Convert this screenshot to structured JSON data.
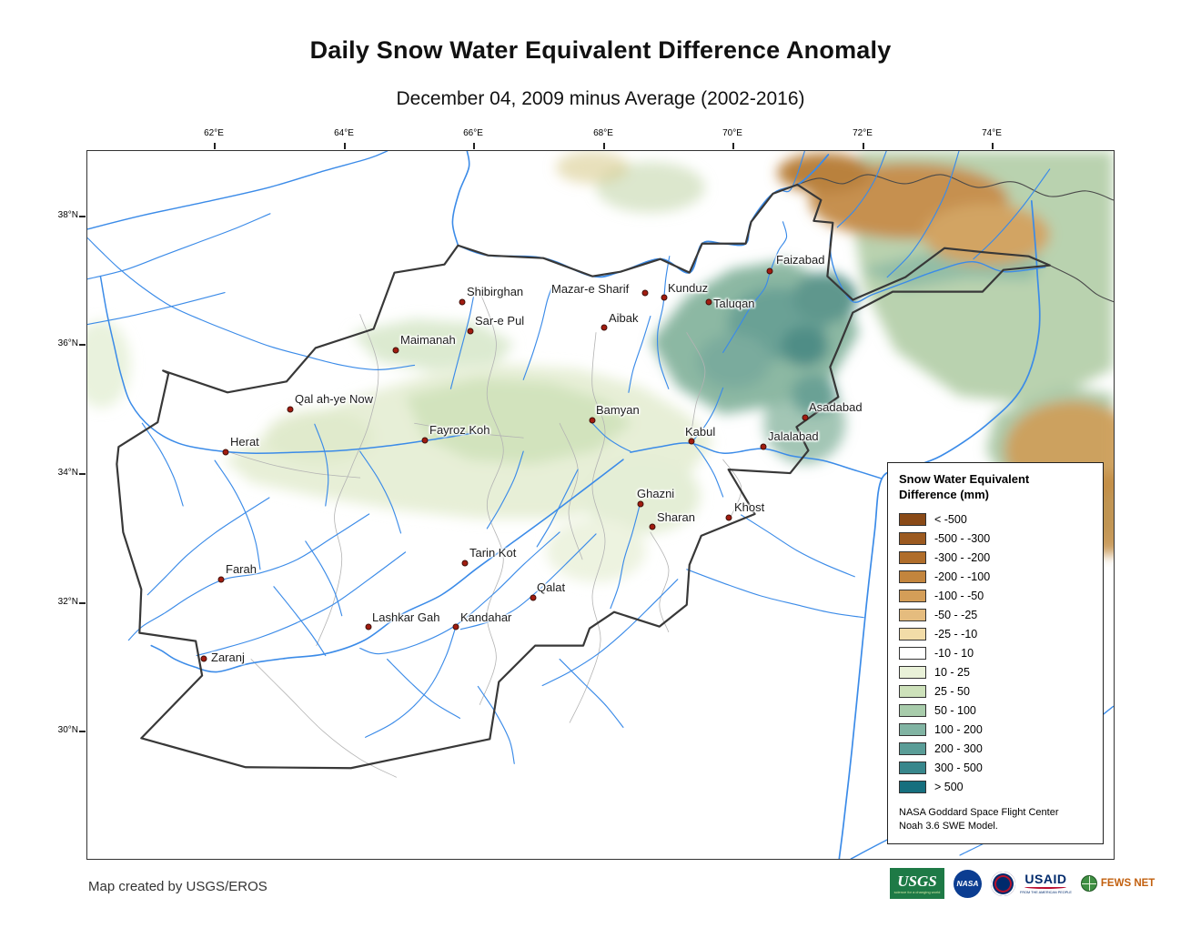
{
  "title": "Daily Snow Water Equivalent Difference Anomaly",
  "subtitle": "December 04, 2009 minus Average (2002-2016)",
  "axes": {
    "lon_labels": [
      "62°E",
      "64°E",
      "66°E",
      "68°E",
      "70°E",
      "72°E",
      "74°E"
    ],
    "lat_labels": [
      "38°N",
      "36°N",
      "34°N",
      "32°N",
      "30°N"
    ]
  },
  "map": {
    "cities": [
      {
        "name": "Faizabad",
        "dot": [
          750,
          132
        ],
        "label": [
          757,
          112
        ]
      },
      {
        "name": "Shibirghan",
        "dot": [
          412,
          166
        ],
        "label": [
          417,
          147
        ]
      },
      {
        "name": "Mazar-e Sharif",
        "dot": [
          613,
          156
        ],
        "label": [
          510,
          144
        ]
      },
      {
        "name": "Kunduz",
        "dot": [
          634,
          161
        ],
        "label": [
          638,
          143
        ]
      },
      {
        "name": "Taluqan",
        "dot": [
          683,
          166
        ],
        "label": [
          688,
          160
        ]
      },
      {
        "name": "Aibak",
        "dot": [
          568,
          194
        ],
        "label": [
          573,
          176
        ]
      },
      {
        "name": "Sar-e Pul",
        "dot": [
          421,
          198
        ],
        "label": [
          426,
          179
        ]
      },
      {
        "name": "Maimanah",
        "dot": [
          339,
          219
        ],
        "label": [
          344,
          200
        ]
      },
      {
        "name": "Qal ah-ye Now",
        "dot": [
          223,
          284
        ],
        "label": [
          228,
          265
        ]
      },
      {
        "name": "Herat",
        "dot": [
          152,
          331
        ],
        "label": [
          157,
          312
        ]
      },
      {
        "name": "Fayroz Koh",
        "dot": [
          371,
          318
        ],
        "label": [
          376,
          299
        ]
      },
      {
        "name": "Bamyan",
        "dot": [
          555,
          296
        ],
        "label": [
          559,
          277
        ]
      },
      {
        "name": "Kabul",
        "dot": [
          664,
          319
        ],
        "label": [
          657,
          301
        ]
      },
      {
        "name": "Asadabad",
        "dot": [
          789,
          293
        ],
        "label": [
          793,
          274
        ]
      },
      {
        "name": "Jalalabad",
        "dot": [
          743,
          325
        ],
        "label": [
          748,
          306
        ]
      },
      {
        "name": "Ghazni",
        "dot": [
          608,
          388
        ],
        "label": [
          604,
          369
        ]
      },
      {
        "name": "Khost",
        "dot": [
          705,
          403
        ],
        "label": [
          711,
          384
        ]
      },
      {
        "name": "Sharan",
        "dot": [
          621,
          413
        ],
        "label": [
          626,
          395
        ]
      },
      {
        "name": "Farah",
        "dot": [
          147,
          471
        ],
        "label": [
          152,
          452
        ]
      },
      {
        "name": "Tarin Kot",
        "dot": [
          415,
          453
        ],
        "label": [
          420,
          434
        ]
      },
      {
        "name": "Qalat",
        "dot": [
          490,
          491
        ],
        "label": [
          494,
          472
        ]
      },
      {
        "name": "Lashkar Gah",
        "dot": [
          309,
          523
        ],
        "label": [
          313,
          505
        ]
      },
      {
        "name": "Kandahar",
        "dot": [
          405,
          523
        ],
        "label": [
          410,
          505
        ]
      },
      {
        "name": "Zaranj",
        "dot": [
          128,
          558
        ],
        "label": [
          136,
          549
        ]
      }
    ]
  },
  "legend": {
    "title_line1": "Snow Water Equivalent",
    "title_line2": "Difference (mm)",
    "entries": [
      {
        "label": "< -500",
        "color": "#8a4a17"
      },
      {
        "label": "-500 - -300",
        "color": "#9c5a20"
      },
      {
        "label": "-300 - -200",
        "color": "#b06d2a"
      },
      {
        "label": "-200 - -100",
        "color": "#c3853d"
      },
      {
        "label": "-100 - -50",
        "color": "#d49e58"
      },
      {
        "label": "-50 - -25",
        "color": "#e5bc7e"
      },
      {
        "label": "-25 - -10",
        "color": "#f2dca8"
      },
      {
        "label": "-10 - 10",
        "color": "#ffffff"
      },
      {
        "label": "10 - 25",
        "color": "#e9f1d8"
      },
      {
        "label": "25 - 50",
        "color": "#cde1ba"
      },
      {
        "label": "50 - 100",
        "color": "#a8ccab"
      },
      {
        "label": "100 - 200",
        "color": "#81b4a3"
      },
      {
        "label": "200 - 300",
        "color": "#5a9d97"
      },
      {
        "label": "300 - 500",
        "color": "#38878c"
      },
      {
        "label": "> 500",
        "color": "#166f7e"
      }
    ],
    "note_line1": "NASA Goddard Space Flight Center",
    "note_line2": "Noah 3.6 SWE Model."
  },
  "footer": {
    "credit": "Map created by USGS/EROS",
    "logos": {
      "usgs": {
        "name": "USGS",
        "tagline": "science for a changing world"
      },
      "nasa": {
        "name": "NASA"
      },
      "usaid": {
        "name": "USAID",
        "tagline": "FROM THE AMERICAN PEOPLE"
      },
      "fewsnet": {
        "name": "FEWS NET"
      }
    }
  }
}
